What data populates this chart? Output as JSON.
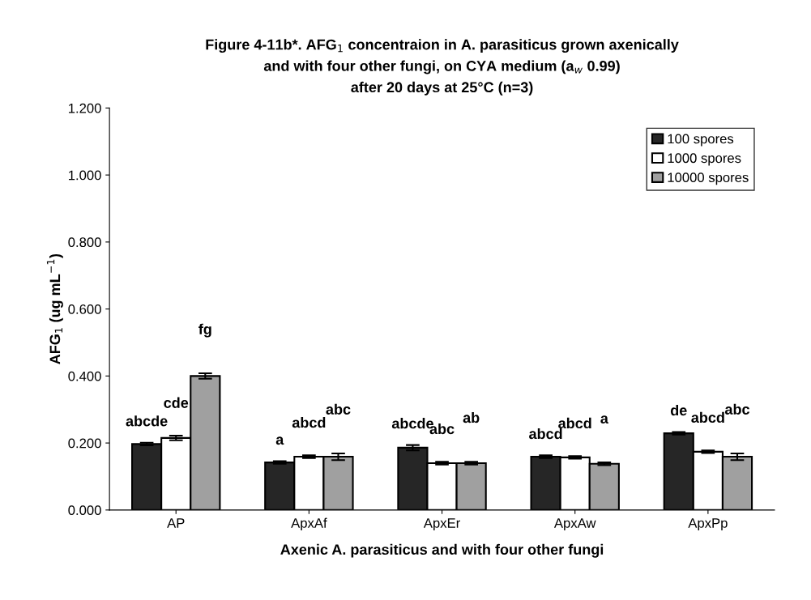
{
  "chart_data": {
    "type": "bar",
    "title": "Figure 4-11b*. AFG$_{1}$ concentraion in A. parasiticus grown axenically\nand with four other fungi, on CYA medium (a$_{w}$ 0.99)\nafter 20 days at 25°C (n=3)",
    "xlabel": "Axenic A. parasiticus and with four other fungi",
    "ylabel": "AFG$_{1}$ (ug mL$^{−1}$)",
    "categories": [
      "AP",
      "ApxAf",
      "ApxEr",
      "ApxAw",
      "ApxPp"
    ],
    "series": [
      {
        "name": "100 spores",
        "color": "#262626",
        "values": [
          0.197,
          0.142,
          0.186,
          0.159,
          0.229
        ],
        "errors": [
          0.004,
          0.004,
          0.008,
          0.004,
          0.004
        ],
        "value_labels": [
          "abcde",
          "a",
          "abcde",
          "abcd",
          "de"
        ]
      },
      {
        "name": "1000 spores",
        "color": "#ffffff",
        "values": [
          0.215,
          0.159,
          0.14,
          0.157,
          0.174
        ],
        "errors": [
          0.007,
          0.004,
          0.004,
          0.004,
          0.004
        ],
        "value_labels": [
          "cde",
          "abcd",
          "abc",
          "abcd",
          "abcd"
        ]
      },
      {
        "name": "10000 spores",
        "color": "#a0a0a0",
        "values": [
          0.4,
          0.159,
          0.14,
          0.138,
          0.159
        ],
        "errors": [
          0.008,
          0.01,
          0.004,
          0.004,
          0.01
        ],
        "value_labels": [
          "fg",
          "abc",
          "ab",
          "a",
          "abc"
        ]
      }
    ],
    "ylim": [
      0,
      1.2
    ],
    "yticks": [
      {
        "value": 0,
        "label": "0.000"
      },
      {
        "value": 0.2,
        "label": "0.200"
      },
      {
        "value": 0.4,
        "label": "0.400"
      },
      {
        "value": 0.6,
        "label": "0.600"
      },
      {
        "value": 0.8,
        "label": "0.800"
      },
      {
        "value": 1.0,
        "label": "1.000"
      },
      {
        "value": 1.2,
        "label": "1.200"
      }
    ],
    "grid": false,
    "legend": "top right"
  }
}
